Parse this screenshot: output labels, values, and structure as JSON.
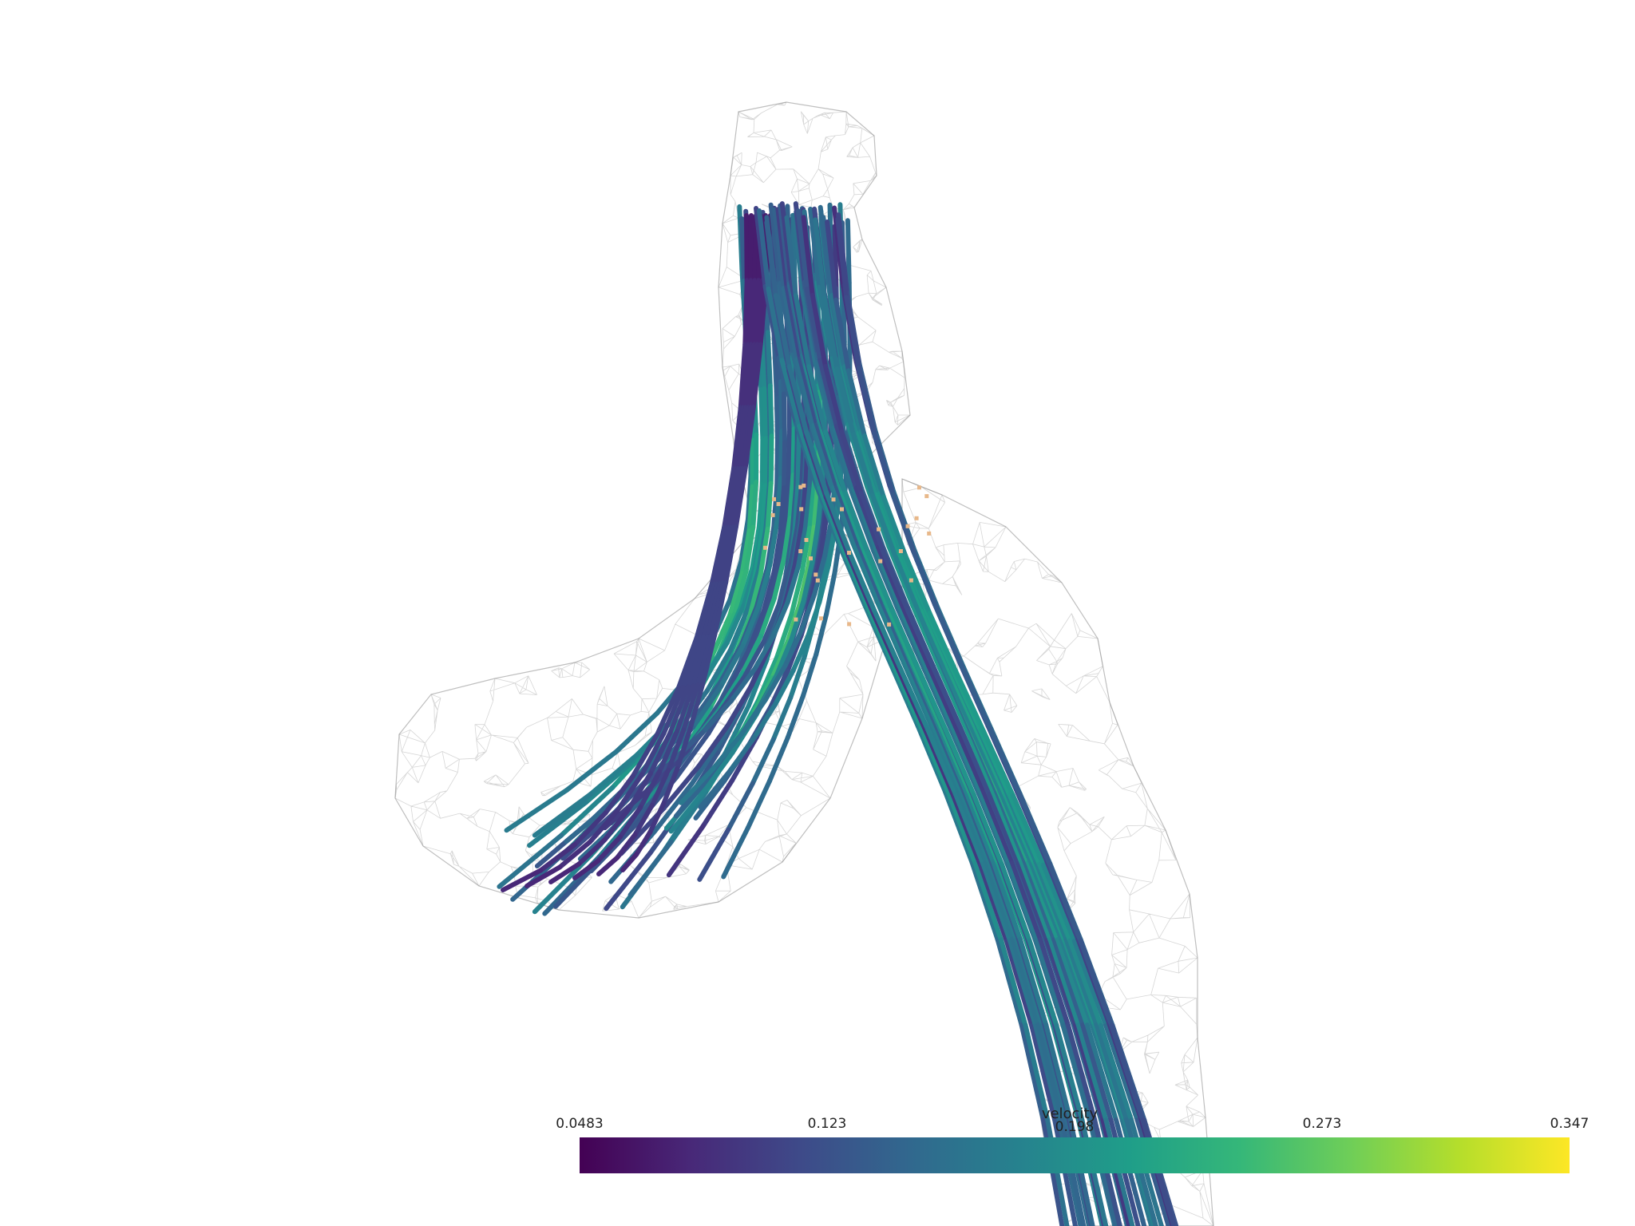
{
  "scene": {
    "field": "velocity",
    "colormap": "viridis",
    "colormap_stops": [
      "#440154",
      "#482878",
      "#3e4a89",
      "#31688e",
      "#26828e",
      "#1f9e89",
      "#35b779",
      "#6ece58",
      "#b5de2b",
      "#fde725"
    ],
    "mesh_color": "#8a8a8a",
    "seed_point_color": "#e8b88a",
    "background": "#ffffff"
  },
  "scalar_bar": {
    "title": "velocity",
    "range": [
      0.0483,
      0.347
    ],
    "tick_labels": [
      "0.0483",
      "0.123",
      "0.198",
      "0.273",
      "0.347"
    ]
  }
}
